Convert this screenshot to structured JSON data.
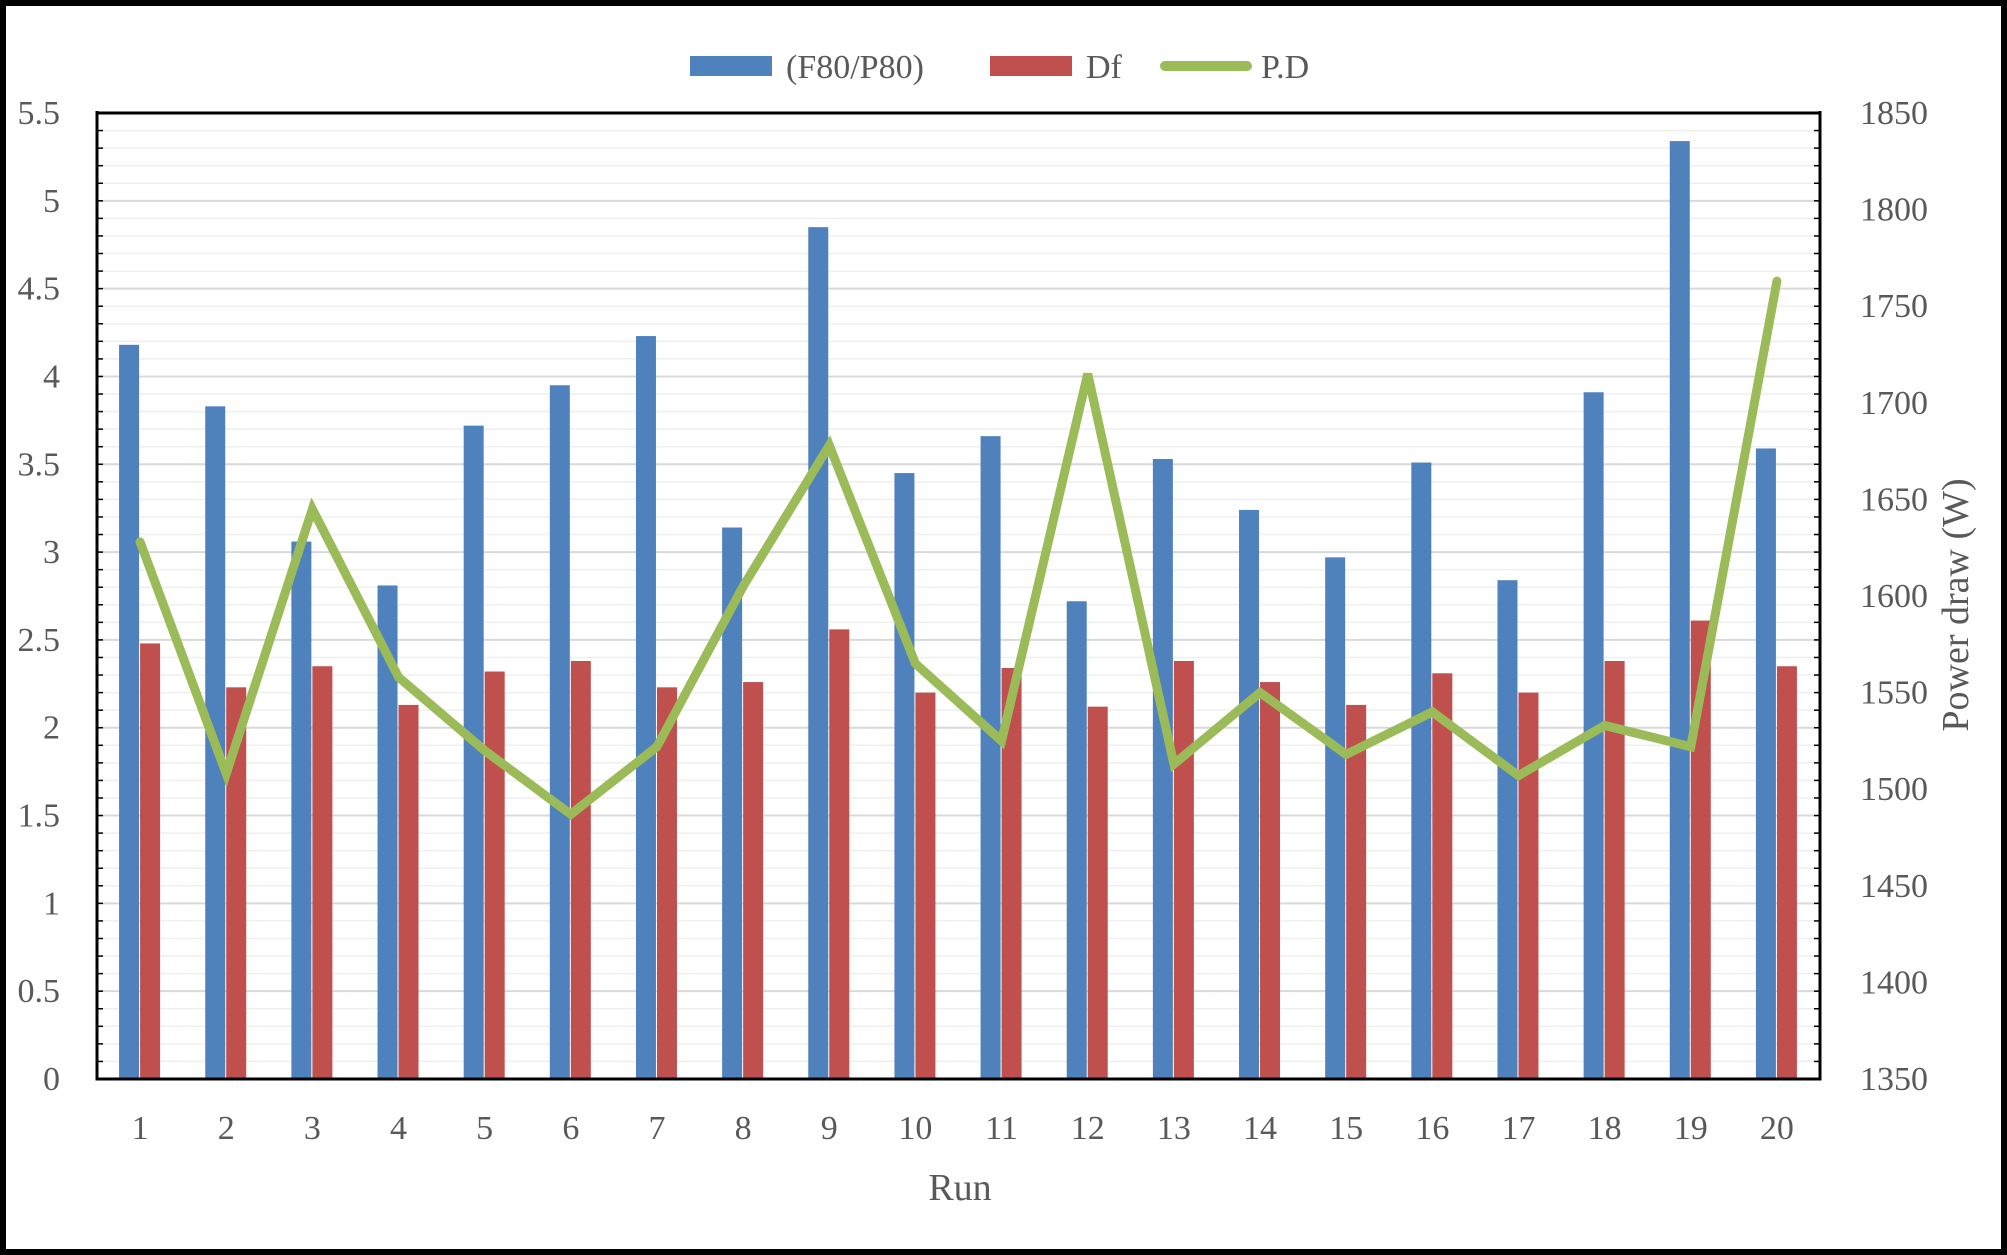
{
  "chart_data": {
    "type": "bar",
    "categories": [
      "1",
      "2",
      "3",
      "4",
      "5",
      "6",
      "7",
      "8",
      "9",
      "10",
      "11",
      "12",
      "13",
      "14",
      "15",
      "16",
      "17",
      "18",
      "19",
      "20"
    ],
    "series": [
      {
        "name": "(F80/P80)",
        "kind": "bar",
        "axis": "left",
        "color": "#4f81bd",
        "values": [
          4.18,
          3.83,
          3.06,
          2.81,
          3.72,
          3.95,
          4.23,
          3.14,
          4.85,
          3.45,
          3.66,
          2.72,
          3.53,
          3.24,
          2.97,
          3.51,
          2.84,
          3.91,
          5.34,
          3.59
        ]
      },
      {
        "name": "Df",
        "kind": "bar",
        "axis": "left",
        "color": "#c0504d",
        "values": [
          2.48,
          2.23,
          2.35,
          2.13,
          2.32,
          2.38,
          2.23,
          2.26,
          2.56,
          2.2,
          2.34,
          2.12,
          2.38,
          2.26,
          2.13,
          2.31,
          2.2,
          2.38,
          2.61,
          2.35
        ]
      },
      {
        "name": "P.D",
        "kind": "line",
        "axis": "right",
        "color": "#9bbb59",
        "values": [
          1628,
          1508,
          1645,
          1558,
          1520,
          1487,
          1522,
          1605,
          1678,
          1565,
          1525,
          1715,
          1513,
          1550,
          1518,
          1540,
          1507,
          1533,
          1522,
          1763
        ]
      }
    ],
    "xlabel": "Run",
    "ylabel": "",
    "y2label": "Power draw (W)",
    "ylim": [
      0,
      5.5
    ],
    "yticks": [
      "0",
      "0.5",
      "1",
      "1.5",
      "2",
      "2.5",
      "3",
      "3.5",
      "4",
      "4.5",
      "5",
      "5.5"
    ],
    "y2lim": [
      1350,
      1850
    ],
    "y2ticks": [
      "1350",
      "1400",
      "1450",
      "1500",
      "1550",
      "1600",
      "1650",
      "1700",
      "1750",
      "1800",
      "1850"
    ],
    "grid": true,
    "legend": "top"
  }
}
